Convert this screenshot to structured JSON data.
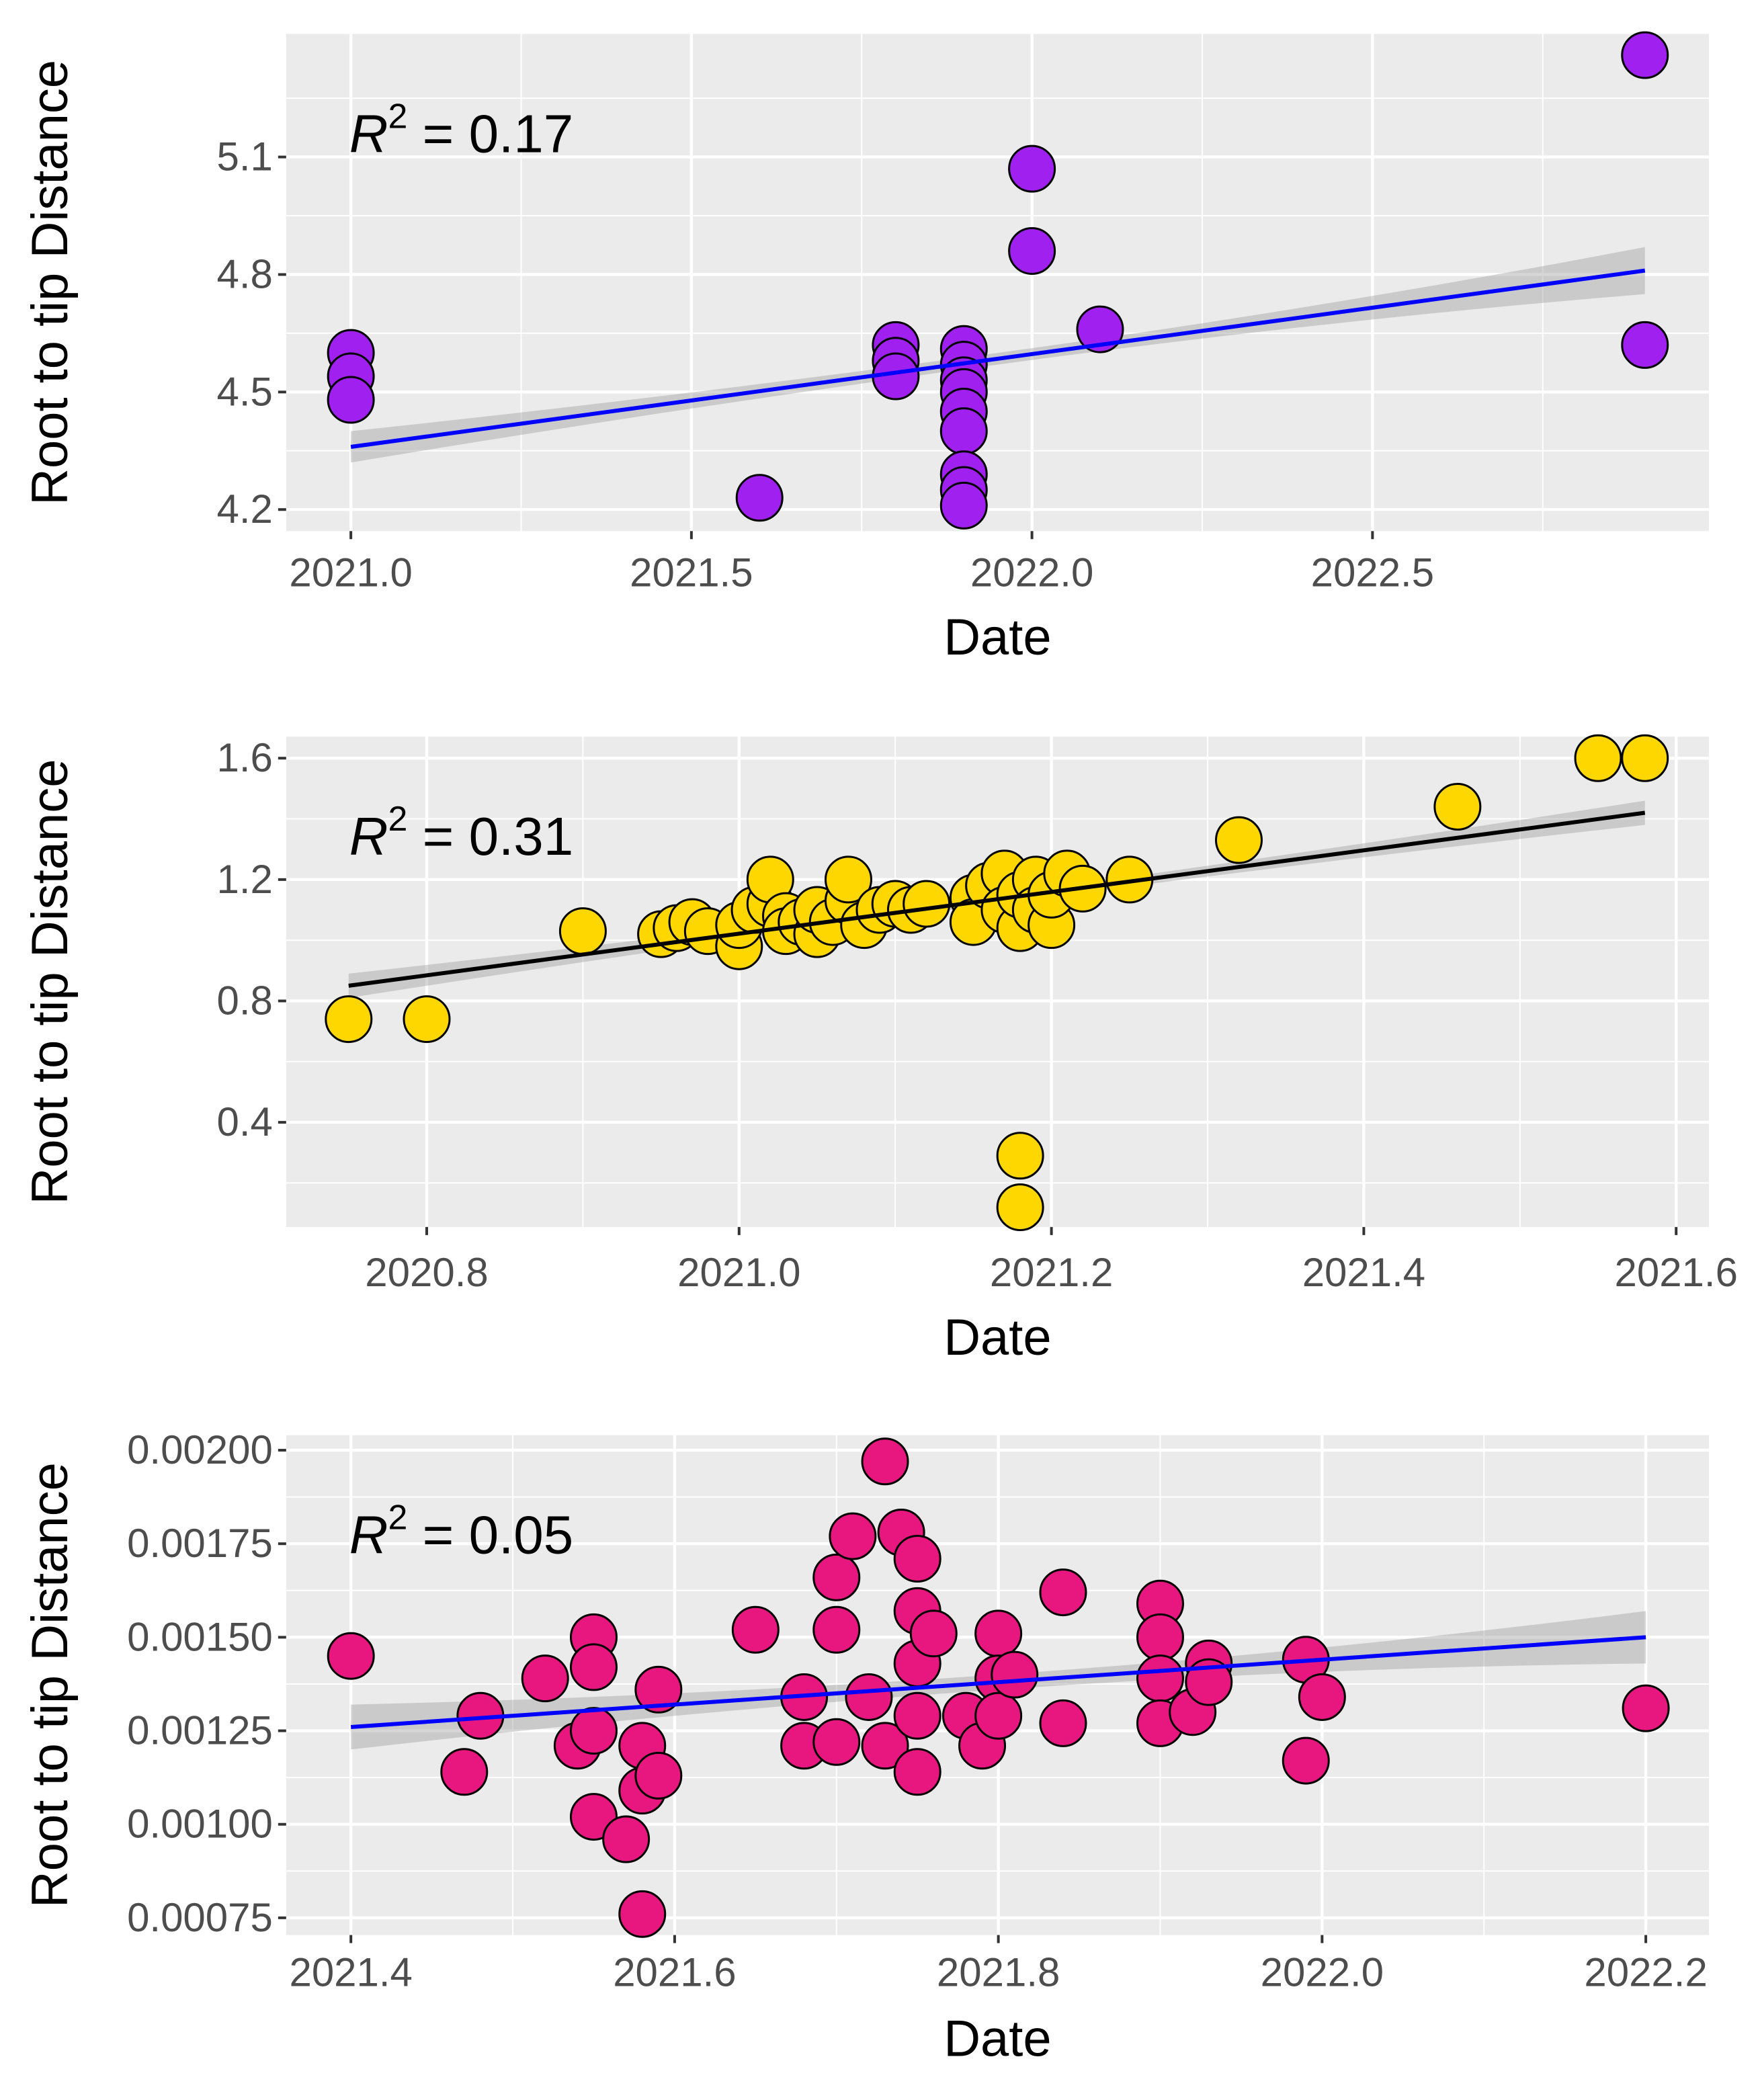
{
  "chart_data": [
    {
      "type": "scatter",
      "title": "",
      "xlabel": "Date",
      "ylabel": "Root to tip Distance",
      "annotation": {
        "r_label": "R",
        "sup": "2",
        "value_text": " = 0.17"
      },
      "xlim": [
        2020.905,
        2022.994
      ],
      "ylim": [
        4.145,
        5.414
      ],
      "xticks": [
        2021.0,
        2021.5,
        2022.0,
        2022.5
      ],
      "xtick_labels": [
        "2021.0",
        "2021.5",
        "2022.0",
        "2022.5"
      ],
      "yticks": [
        4.2,
        4.5,
        4.8,
        5.1
      ],
      "ytick_labels": [
        "4.2",
        "4.5",
        "4.8",
        "5.1"
      ],
      "grid": true,
      "point_color": "#a020f0",
      "line_color": "#0000ff",
      "fit": {
        "x": [
          2021.0,
          2022.9
        ],
        "y": [
          4.36,
          4.81
        ]
      },
      "ci_halfwidth": [
        0.04,
        0.015,
        0.06
      ],
      "points": [
        [
          2021.0,
          4.6
        ],
        [
          2021.0,
          4.54
        ],
        [
          2021.0,
          4.48
        ],
        [
          2021.6,
          4.23
        ],
        [
          2021.8,
          4.62
        ],
        [
          2021.8,
          4.58
        ],
        [
          2021.8,
          4.54
        ],
        [
          2021.9,
          4.61
        ],
        [
          2021.9,
          4.57
        ],
        [
          2021.9,
          4.53
        ],
        [
          2021.9,
          4.5
        ],
        [
          2021.9,
          4.45
        ],
        [
          2021.9,
          4.4
        ],
        [
          2021.9,
          4.29
        ],
        [
          2021.9,
          4.25
        ],
        [
          2021.9,
          4.21
        ],
        [
          2022.0,
          5.07
        ],
        [
          2022.0,
          4.86
        ],
        [
          2022.1,
          4.66
        ],
        [
          2022.9,
          5.36
        ],
        [
          2022.9,
          4.62
        ]
      ]
    },
    {
      "type": "scatter",
      "title": "",
      "xlabel": "Date",
      "ylabel": "Root to tip Distance",
      "annotation": {
        "r_label": "R",
        "sup": "2",
        "value_text": " = 0.31"
      },
      "xlim": [
        2020.71,
        2021.621
      ],
      "ylim": [
        0.055,
        1.671
      ],
      "xticks": [
        2020.8,
        2021.0,
        2021.2,
        2021.4,
        2021.6
      ],
      "xtick_labels": [
        "2020.8",
        "2021.0",
        "2021.2",
        "2021.4",
        "2021.6"
      ],
      "yticks": [
        0.4,
        0.8,
        1.2,
        1.6
      ],
      "ytick_labels": [
        "0.4",
        "0.8",
        "1.2",
        "1.6"
      ],
      "grid": true,
      "point_color": "#ffd700",
      "line_color": "#000000",
      "fit": {
        "x": [
          2020.75,
          2021.58
        ],
        "y": [
          0.85,
          1.42
        ]
      },
      "ci_halfwidth": [
        0.04,
        0.015,
        0.04
      ],
      "points": [
        [
          2020.75,
          0.74
        ],
        [
          2020.8,
          0.74
        ],
        [
          2020.9,
          1.03
        ],
        [
          2020.95,
          1.02
        ],
        [
          2020.96,
          1.04
        ],
        [
          2020.97,
          1.06
        ],
        [
          2020.98,
          1.03
        ],
        [
          2021.0,
          0.98
        ],
        [
          2021.0,
          1.05
        ],
        [
          2021.01,
          1.1
        ],
        [
          2021.02,
          1.12
        ],
        [
          2021.02,
          1.2
        ],
        [
          2021.03,
          1.08
        ],
        [
          2021.03,
          1.03
        ],
        [
          2021.04,
          1.06
        ],
        [
          2021.05,
          1.02
        ],
        [
          2021.05,
          1.1
        ],
        [
          2021.06,
          1.06
        ],
        [
          2021.07,
          1.13
        ],
        [
          2021.07,
          1.2
        ],
        [
          2021.08,
          1.05
        ],
        [
          2021.09,
          1.1
        ],
        [
          2021.1,
          1.12
        ],
        [
          2021.11,
          1.1
        ],
        [
          2021.12,
          1.12
        ],
        [
          2021.15,
          1.14
        ],
        [
          2021.15,
          1.06
        ],
        [
          2021.16,
          1.18
        ],
        [
          2021.17,
          1.22
        ],
        [
          2021.17,
          1.1
        ],
        [
          2021.18,
          1.04
        ],
        [
          2021.18,
          1.15
        ],
        [
          2021.19,
          1.2
        ],
        [
          2021.19,
          1.1
        ],
        [
          2021.2,
          1.05
        ],
        [
          2021.2,
          1.15
        ],
        [
          2021.21,
          1.22
        ],
        [
          2021.22,
          1.17
        ],
        [
          2021.25,
          1.2
        ],
        [
          2021.18,
          0.29
        ],
        [
          2021.18,
          0.12
        ],
        [
          2021.32,
          1.33
        ],
        [
          2021.46,
          1.44
        ],
        [
          2021.55,
          1.6
        ],
        [
          2021.58,
          1.6
        ]
      ]
    },
    {
      "type": "scatter",
      "title": "",
      "xlabel": "Date",
      "ylabel": "Root to tip Distance",
      "annotation": {
        "r_label": "R",
        "sup": "2",
        "value_text": " = 0.05"
      },
      "xlim": [
        2021.36,
        2022.239
      ],
      "ylim": [
        0.000704,
        0.00204
      ],
      "xticks": [
        2021.4,
        2021.6,
        2021.8,
        2022.0,
        2022.2
      ],
      "xtick_labels": [
        "2021.4",
        "2021.6",
        "2021.8",
        "2022.0",
        "2022.2"
      ],
      "yticks": [
        0.00075,
        0.001,
        0.00125,
        0.0015,
        0.00175,
        0.002
      ],
      "ytick_labels": [
        "0.00075",
        "0.00100",
        "0.00125",
        "0.00150",
        "0.00175",
        "0.00200"
      ],
      "grid": true,
      "point_color": "#e8177f",
      "line_color": "#0000ff",
      "fit": {
        "x": [
          2021.4,
          2022.2
        ],
        "y": [
          0.00126,
          0.0015
        ]
      },
      "ci_halfwidth": [
        6e-05,
        2e-05,
        7e-05
      ],
      "points": [
        [
          2021.4,
          0.00145
        ],
        [
          2021.47,
          0.00114
        ],
        [
          2021.48,
          0.00129
        ],
        [
          2021.52,
          0.00139
        ],
        [
          2021.54,
          0.00121
        ],
        [
          2021.55,
          0.0015
        ],
        [
          2021.55,
          0.00142
        ],
        [
          2021.55,
          0.00125
        ],
        [
          2021.55,
          0.00102
        ],
        [
          2021.57,
          0.00096
        ],
        [
          2021.58,
          0.00076
        ],
        [
          2021.58,
          0.00121
        ],
        [
          2021.58,
          0.00109
        ],
        [
          2021.59,
          0.00136
        ],
        [
          2021.59,
          0.00113
        ],
        [
          2021.65,
          0.00152
        ],
        [
          2021.68,
          0.00121
        ],
        [
          2021.68,
          0.00134
        ],
        [
          2021.7,
          0.00152
        ],
        [
          2021.7,
          0.00166
        ],
        [
          2021.7,
          0.00122
        ],
        [
          2021.71,
          0.00177
        ],
        [
          2021.73,
          0.00197
        ],
        [
          2021.73,
          0.00121
        ],
        [
          2021.72,
          0.00134
        ],
        [
          2021.74,
          0.00178
        ],
        [
          2021.75,
          0.00171
        ],
        [
          2021.75,
          0.00157
        ],
        [
          2021.75,
          0.00143
        ],
        [
          2021.75,
          0.00129
        ],
        [
          2021.75,
          0.00114
        ],
        [
          2021.76,
          0.00151
        ],
        [
          2021.78,
          0.00129
        ],
        [
          2021.79,
          0.00121
        ],
        [
          2021.8,
          0.00151
        ],
        [
          2021.8,
          0.00139
        ],
        [
          2021.8,
          0.00129
        ],
        [
          2021.81,
          0.0014
        ],
        [
          2021.84,
          0.00162
        ],
        [
          2021.84,
          0.00127
        ],
        [
          2021.9,
          0.00159
        ],
        [
          2021.9,
          0.0015
        ],
        [
          2021.9,
          0.00139
        ],
        [
          2021.9,
          0.00127
        ],
        [
          2021.92,
          0.0013
        ],
        [
          2021.93,
          0.00143
        ],
        [
          2021.93,
          0.00138
        ],
        [
          2021.99,
          0.00144
        ],
        [
          2021.99,
          0.00117
        ],
        [
          2022.0,
          0.00134
        ],
        [
          2022.2,
          0.00131
        ]
      ]
    }
  ]
}
